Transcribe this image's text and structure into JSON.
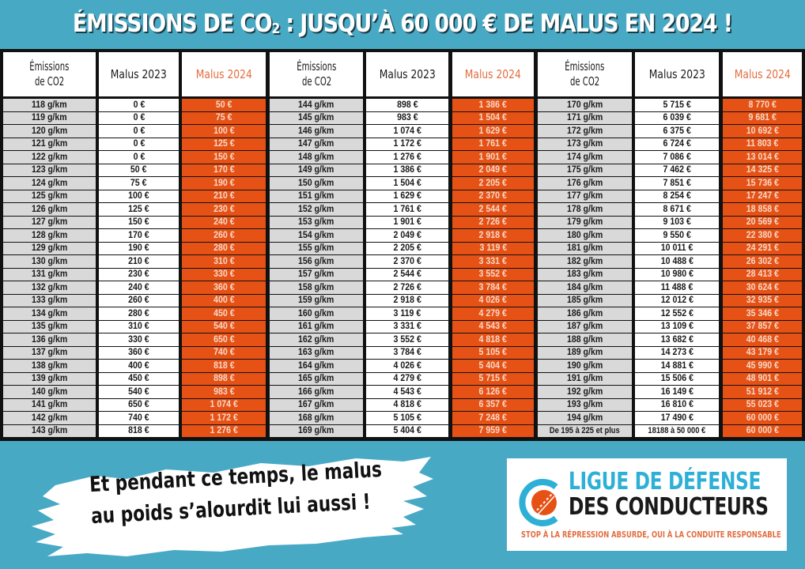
{
  "header": {
    "title_pre": "ÉMISSIONS DE CO",
    "title_sub": "2",
    "title_post": " : JUSQU’À 60 000 € DE MALUS EN 2024 !"
  },
  "table": {
    "headers": {
      "emissions_line1": "Émissions",
      "emissions_line2": "de CO2",
      "malus_2023": "Malus 2023",
      "malus_2024": "Malus 2024"
    },
    "blocks": [
      {
        "emissions": [
          "118 g/km",
          "119 g/km",
          "120 g/km",
          "121 g/km",
          "122 g/km",
          "123 g/km",
          "124 g/km",
          "125 g/km",
          "126 g/km",
          "127 g/km",
          "128 g/km",
          "129 g/km",
          "130 g/km",
          "131 g/km",
          "132 g/km",
          "133 g/km",
          "134 g/km",
          "135 g/km",
          "136 g/km",
          "137 g/km",
          "138 g/km",
          "139 g/km",
          "140 g/km",
          "141 g/km",
          "142 g/km",
          "143 g/km"
        ],
        "malus_2023": [
          "0 €",
          "0 €",
          "0 €",
          "0 €",
          "0 €",
          "50 €",
          "75 €",
          "100 €",
          "125 €",
          "150 €",
          "170 €",
          "190 €",
          "210 €",
          "230 €",
          "240 €",
          "260 €",
          "280 €",
          "310 €",
          "330 €",
          "360 €",
          "400 €",
          "450 €",
          "540 €",
          "650 €",
          "740 €",
          "818 €"
        ],
        "malus_2024": [
          "50 €",
          "75 €",
          "100 €",
          "125 €",
          "150 €",
          "170 €",
          "190 €",
          "210 €",
          "230 €",
          "240 €",
          "260 €",
          "280 €",
          "310 €",
          "330 €",
          "360 €",
          "400 €",
          "450 €",
          "540 €",
          "650 €",
          "740 €",
          "818 €",
          "898 €",
          "983 €",
          "1 074 €",
          "1 172 €",
          "1 276 €"
        ]
      },
      {
        "emissions": [
          "144 g/km",
          "145 g/km",
          "146 g/km",
          "147 g/km",
          "148 g/km",
          "149 g/km",
          "150 g/km",
          "151 g/km",
          "152 g/km",
          "153 g/km",
          "154 g/km",
          "155 g/km",
          "156 g/km",
          "157 g/km",
          "158 g/km",
          "159 g/km",
          "160 g/km",
          "161 g/km",
          "162 g/km",
          "163 g/km",
          "164 g/km",
          "165 g/km",
          "166 g/km",
          "167 g/km",
          "168 g/km",
          "169 g/km"
        ],
        "malus_2023": [
          "898 €",
          "983 €",
          "1 074 €",
          "1 172 €",
          "1 276 €",
          "1 386 €",
          "1 504 €",
          "1 629 €",
          "1 761 €",
          "1 901 €",
          "2 049 €",
          "2 205 €",
          "2 370 €",
          "2 544 €",
          "2 726 €",
          "2 918 €",
          "3 119 €",
          "3 331 €",
          "3 552 €",
          "3 784 €",
          "4 026 €",
          "4 279 €",
          "4 543 €",
          "4 818 €",
          "5 105 €",
          "5 404 €"
        ],
        "malus_2024": [
          "1 386 €",
          "1 504 €",
          "1 629 €",
          "1 761 €",
          "1 901 €",
          "2 049 €",
          "2 205 €",
          "2 370 €",
          "2 544 €",
          "2 726 €",
          "2 918 €",
          "3 119 €",
          "3 331 €",
          "3 552 €",
          "3 784 €",
          "4 026 €",
          "4 279 €",
          "4 543 €",
          "4 818 €",
          "5 105 €",
          "5 404 €",
          "5 715 €",
          "6 126 €",
          "6 357 €",
          "7 248 €",
          "7 959 €"
        ]
      },
      {
        "emissions": [
          "170 g/km",
          "171 g/km",
          "172 g/km",
          "173 g/km",
          "174 g/km",
          "175 g/km",
          "176 g/km",
          "177 g/km",
          "178 g/km",
          "179 g/km",
          "180 g/km",
          "181 g/km",
          "182 g/km",
          "183 g/km",
          "184 g/km",
          "185 g/km",
          "186 g/km",
          "187 g/km",
          "188 g/km",
          "189 g/km",
          "190 g/km",
          "191 g/km",
          "192 g/km",
          "193 g/km",
          "194 g/km",
          "De 195 à 225 et plus"
        ],
        "malus_2023": [
          "5 715 €",
          "6 039 €",
          "6 375 €",
          "6 724 €",
          "7 086 €",
          "7 462 €",
          "7 851 €",
          "8 254 €",
          "8 671 €",
          "9 103 €",
          "9 550 €",
          "10 011 €",
          "10 488 €",
          "10 980 €",
          "11 488 €",
          "12 012 €",
          "12 552 €",
          "13 109 €",
          "13 682 €",
          "14 273 €",
          "14 881 €",
          "15 506 €",
          "16 149 €",
          "16 810 €",
          "17 490 €",
          "18188 à 50 000 €"
        ],
        "malus_2024": [
          "8 770 €",
          "9 681 €",
          "10 692 €",
          "11 803 €",
          "13 014 €",
          "14 325 €",
          "15 736 €",
          "17 247 €",
          "18 858 €",
          "20 569 €",
          "22 380 €",
          "24 291 €",
          "26 302 €",
          "28 413 €",
          "30 624 €",
          "32 935 €",
          "35 346 €",
          "37 857 €",
          "40 468 €",
          "43 179 €",
          "45 990 €",
          "48 901 €",
          "51 912 €",
          "55 023 €",
          "60 000 €",
          "60 000 €"
        ]
      }
    ]
  },
  "slogan": {
    "line1": "Et pendant ce temps, le malus",
    "line2": "au poids s’alourdit lui aussi !"
  },
  "logo": {
    "line1": "LIGUE DE DÉFENSE",
    "line2": "DES CONDUCTEURS",
    "tagline": "STOP À LA RÉPRESSION ABSURDE, OUI À LA CONDUITE RESPONSABLE",
    "icon": "road-circle-logo-icon"
  },
  "colors": {
    "background": "#48a9c5",
    "accent_orange": "#e65216",
    "header_orange_text": "#e26d3f",
    "emissions_cell": "#d9d9d9",
    "logo_blue": "#2eb0d6"
  }
}
